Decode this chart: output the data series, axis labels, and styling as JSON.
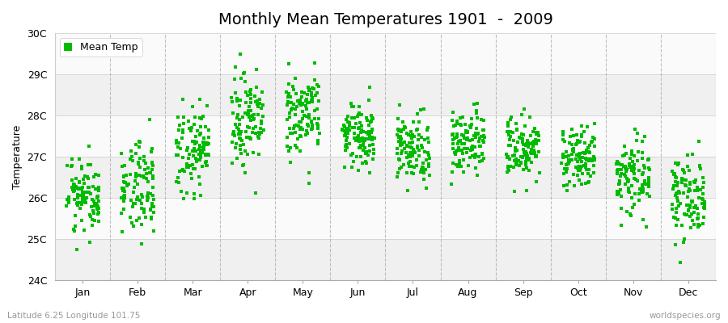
{
  "title": "Monthly Mean Temperatures 1901  -  2009",
  "ylabel": "Temperature",
  "bottom_left": "Latitude 6.25 Longitude 101.75",
  "bottom_right": "worldspecies.org",
  "legend_label": "Mean Temp",
  "months": [
    "Jan",
    "Feb",
    "Mar",
    "Apr",
    "May",
    "Jun",
    "Jul",
    "Aug",
    "Sep",
    "Oct",
    "Nov",
    "Dec"
  ],
  "month_means": [
    26.1,
    26.3,
    27.2,
    27.9,
    28.1,
    27.5,
    27.2,
    27.3,
    27.2,
    27.0,
    26.5,
    26.1
  ],
  "month_stds": [
    0.45,
    0.5,
    0.5,
    0.5,
    0.5,
    0.4,
    0.38,
    0.38,
    0.38,
    0.38,
    0.48,
    0.48
  ],
  "n_years": 109,
  "ylim_min": 24.0,
  "ylim_max": 30.0,
  "yticks": [
    24,
    25,
    26,
    27,
    28,
    29,
    30
  ],
  "ytick_labels": [
    "24C",
    "25C",
    "26C",
    "27C",
    "28C",
    "29C",
    "30C"
  ],
  "marker_color": "#00bb00",
  "marker": "s",
  "marker_size": 2.5,
  "bg_color": "#ffffff",
  "band_color_odd": "#f0f0f0",
  "band_color_even": "#fafafa",
  "grid_color": "#999999",
  "title_fontsize": 14,
  "label_fontsize": 9,
  "tick_fontsize": 9,
  "seed": 42
}
